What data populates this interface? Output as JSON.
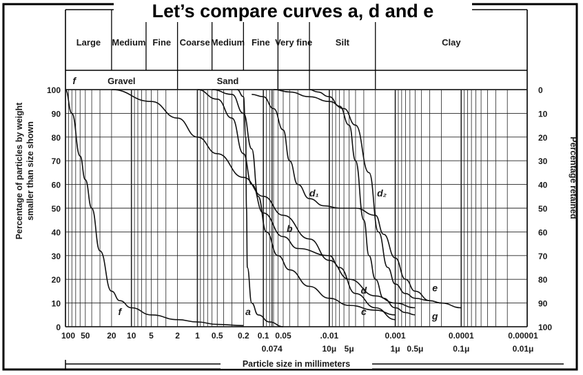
{
  "slide_title": "Let’s compare curves a, d and e",
  "chart_data": {
    "type": "line",
    "title": "",
    "xlabel": "Particle size in millimeters",
    "ylabel": "Percentage of particles by weight smaller than size shown",
    "y2label": "Percentage retained",
    "x_scale": "log",
    "x_direction": "decreasing",
    "xlim": [
      100,
      1e-05
    ],
    "ylim": [
      0,
      100
    ],
    "grid": true,
    "legend": "none",
    "x_ticks": [
      {
        "value": 100,
        "label": "100"
      },
      {
        "value": 50,
        "label": "50"
      },
      {
        "value": 20,
        "label": "20"
      },
      {
        "value": 10,
        "label": "10"
      },
      {
        "value": 5,
        "label": "5"
      },
      {
        "value": 2,
        "label": "2"
      },
      {
        "value": 1,
        "label": "1"
      },
      {
        "value": 0.5,
        "label": "0.5"
      },
      {
        "value": 0.2,
        "label": "0.2"
      },
      {
        "value": 0.1,
        "label": "0.1"
      },
      {
        "value": 0.05,
        "label": "0.05"
      },
      {
        "value": 0.01,
        "label": ".0.01"
      },
      {
        "value": 0.001,
        "label": "0.001"
      },
      {
        "value": 0.0001,
        "label": "0.0001"
      },
      {
        "value": 1e-05,
        "label": "0.00001"
      }
    ],
    "x_ticks_second_row": [
      {
        "value": 0.074,
        "label": "0.074"
      },
      {
        "value": 0.01,
        "label": "10μ"
      },
      {
        "value": 0.005,
        "label": "5μ"
      },
      {
        "value": 0.001,
        "label": "1μ"
      },
      {
        "value": 0.0005,
        "label": "0.5μ"
      },
      {
        "value": 0.0001,
        "label": "0.1μ"
      },
      {
        "value": 1e-05,
        "label": "0.01μ"
      }
    ],
    "y_ticks_left": [
      "0",
      "10",
      "20",
      "30",
      "40",
      "50",
      "60",
      "70",
      "80",
      "90",
      "100"
    ],
    "y_ticks_right": [
      "100",
      "90",
      "80",
      "70",
      "60",
      "50",
      "40",
      "30",
      "20",
      "10",
      "0"
    ],
    "size_classes": [
      {
        "label": "Large",
        "from": 100,
        "to": 20
      },
      {
        "label": "Medium",
        "from": 20,
        "to": 6
      },
      {
        "label": "Fine",
        "from": 6,
        "to": 2
      },
      {
        "label": "Coarse",
        "from": 2,
        "to": 0.6
      },
      {
        "label": "Medium",
        "from": 0.6,
        "to": 0.2
      },
      {
        "label": "Fine",
        "from": 0.2,
        "to": 0.06
      },
      {
        "label": "Very fine",
        "from": 0.06,
        "to": 0.02
      },
      {
        "label": "Silt",
        "from": 0.02,
        "to": 0.002
      },
      {
        "label": "Clay",
        "from": 0.002,
        "to": 1e-05
      }
    ],
    "groups": [
      {
        "label": "Gravel",
        "from": 100,
        "to": 2
      },
      {
        "label": "Sand",
        "from": 2,
        "to": 0.06
      }
    ],
    "series": [
      {
        "name": "a",
        "points": [
          [
            0.25,
            100
          ],
          [
            0.2,
            97
          ],
          [
            0.185,
            80
          ],
          [
            0.18,
            50
          ],
          [
            0.175,
            25
          ],
          [
            0.15,
            10
          ],
          [
            0.12,
            5
          ],
          [
            0.08,
            2
          ],
          [
            0.05,
            0
          ]
        ]
      },
      {
        "name": "b",
        "points": [
          [
            1.0,
            100
          ],
          [
            0.5,
            96
          ],
          [
            0.3,
            88
          ],
          [
            0.2,
            73
          ],
          [
            0.15,
            60
          ],
          [
            0.1,
            48
          ],
          [
            0.05,
            38
          ],
          [
            0.03,
            33
          ],
          [
            0.01,
            30
          ],
          [
            0.007,
            25
          ],
          [
            0.004,
            14
          ],
          [
            0.002,
            8
          ],
          [
            0.001,
            3
          ]
        ]
      },
      {
        "name": "c",
        "points": [
          [
            0.6,
            100
          ],
          [
            0.3,
            98
          ],
          [
            0.2,
            90
          ],
          [
            0.15,
            75
          ],
          [
            0.12,
            55
          ],
          [
            0.09,
            40
          ],
          [
            0.06,
            30
          ],
          [
            0.04,
            24
          ],
          [
            0.02,
            17
          ],
          [
            0.01,
            12
          ],
          [
            0.005,
            9
          ],
          [
            0.002,
            7
          ],
          [
            0.001,
            5
          ]
        ]
      },
      {
        "name": "d",
        "points": [
          [
            20,
            100
          ],
          [
            5,
            95
          ],
          [
            2,
            88
          ],
          [
            1,
            80
          ],
          [
            0.5,
            73
          ],
          [
            0.2,
            63
          ],
          [
            0.1,
            55
          ],
          [
            0.05,
            47
          ],
          [
            0.02,
            37
          ],
          [
            0.01,
            28
          ],
          [
            0.005,
            20
          ],
          [
            0.002,
            13
          ],
          [
            0.001,
            10
          ],
          [
            0.0005,
            8
          ]
        ]
      },
      {
        "name": "d₁",
        "points": [
          [
            0.15,
            98
          ],
          [
            0.1,
            97
          ],
          [
            0.07,
            92
          ],
          [
            0.05,
            83
          ],
          [
            0.04,
            70
          ],
          [
            0.03,
            60
          ],
          [
            0.02,
            54
          ],
          [
            0.012,
            51
          ],
          [
            0.007,
            50
          ]
        ]
      },
      {
        "name": "d₂",
        "points": [
          [
            0.007,
            50
          ],
          [
            0.004,
            50
          ],
          [
            0.002,
            47
          ],
          [
            0.0015,
            39
          ],
          [
            0.001,
            29
          ],
          [
            0.0007,
            20
          ],
          [
            0.0005,
            15
          ],
          [
            0.0003,
            11
          ],
          [
            0.0002,
            10
          ],
          [
            0.0001,
            8
          ]
        ]
      },
      {
        "name": "e",
        "points": [
          [
            0.07,
            100
          ],
          [
            0.04,
            99
          ],
          [
            0.02,
            97
          ],
          [
            0.01,
            95
          ],
          [
            0.006,
            92
          ],
          [
            0.004,
            85
          ],
          [
            0.0025,
            65
          ],
          [
            0.0018,
            40
          ],
          [
            0.0013,
            25
          ],
          [
            0.001,
            18
          ],
          [
            0.0007,
            14
          ],
          [
            0.0005,
            12
          ],
          [
            0.0003,
            11
          ],
          [
            0.0002,
            10
          ]
        ]
      },
      {
        "name": "f",
        "points": [
          [
            100,
            100
          ],
          [
            80,
            90
          ],
          [
            60,
            72
          ],
          [
            50,
            62
          ],
          [
            40,
            50
          ],
          [
            30,
            32
          ],
          [
            20,
            15
          ],
          [
            15,
            11
          ],
          [
            10,
            8
          ],
          [
            5,
            5
          ],
          [
            2,
            3
          ],
          [
            1,
            2
          ],
          [
            0.5,
            1
          ],
          [
            0.2,
            0.5
          ]
        ]
      },
      {
        "name": "g",
        "points": [
          [
            0.02,
            100
          ],
          [
            0.015,
            99
          ],
          [
            0.01,
            97
          ],
          [
            0.007,
            93
          ],
          [
            0.005,
            85
          ],
          [
            0.004,
            70
          ],
          [
            0.003,
            45
          ],
          [
            0.0025,
            30
          ],
          [
            0.002,
            20
          ],
          [
            0.0015,
            12
          ],
          [
            0.001,
            8
          ],
          [
            0.0007,
            6
          ],
          [
            0.0005,
            5
          ]
        ]
      }
    ]
  }
}
